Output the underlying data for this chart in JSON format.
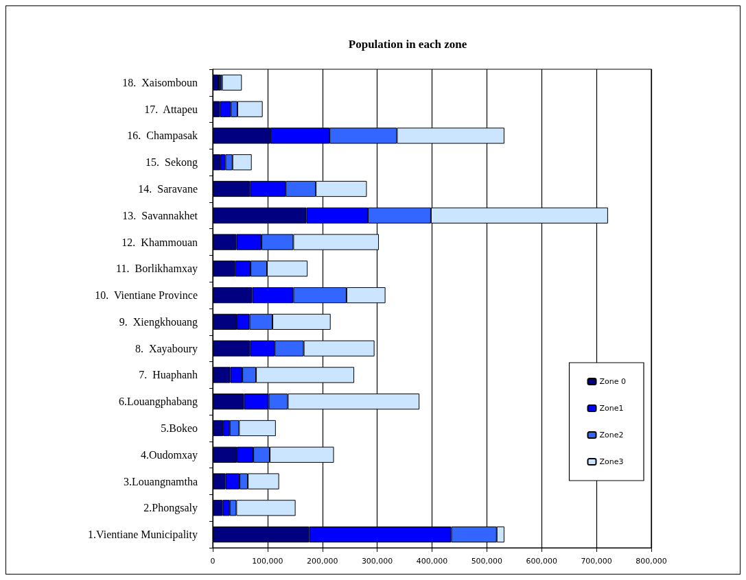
{
  "chart_data": {
    "type": "bar",
    "orientation": "horizontal",
    "stacked": true,
    "title": "Population in each zone",
    "categories": [
      "18.  Xaisomboun",
      "17.  Attapeu",
      "16.  Champasak",
      "15.  Sekong",
      "14.  Saravane",
      "13.  Savannakhet",
      "12.  Khammouan",
      "11.  Borlikhamxay",
      "10.  Vientiane Province",
      "9.  Xiengkhouang",
      "8.  Xayaboury",
      "7.  Huaphanh",
      "6.Louangphabang",
      "5.Bokeo",
      "4.Oudomxay",
      "3.Louangnamtha",
      "2.Phongsaly",
      "1.Vientiane Municipality"
    ],
    "series": [
      {
        "name": "Zone 0",
        "color": "#000080",
        "values": [
          10000,
          13000,
          105000,
          14000,
          68000,
          171000,
          43000,
          41000,
          72000,
          44000,
          68000,
          32000,
          57000,
          19000,
          44000,
          23000,
          18000,
          176000
        ]
      },
      {
        "name": "Zone1",
        "color": "#0000ff",
        "values": [
          4000,
          20000,
          108000,
          9000,
          65000,
          112000,
          46000,
          28000,
          75000,
          23000,
          45000,
          22000,
          45000,
          12000,
          30000,
          26000,
          13000,
          259000
        ]
      },
      {
        "name": "Zone2",
        "color": "#3366ff",
        "values": [
          3000,
          12000,
          123000,
          13000,
          55000,
          115000,
          58000,
          30000,
          97000,
          42000,
          53000,
          25000,
          35000,
          17000,
          30000,
          15000,
          12000,
          83000
        ]
      },
      {
        "name": "Zone3",
        "color": "#cce5ff",
        "values": [
          36000,
          46000,
          196000,
          35000,
          93000,
          323000,
          156000,
          74000,
          71000,
          106000,
          129000,
          179000,
          240000,
          67000,
          117000,
          57000,
          108000,
          14000
        ]
      }
    ],
    "xlim": [
      0,
      800000
    ],
    "xticks": [
      0,
      {
        "value": 100000,
        "label": "100,000"
      },
      {
        "value": 200000,
        "label": "200,000"
      },
      {
        "value": 300000,
        "label": "300,000"
      },
      {
        "value": 400000,
        "label": "400,000"
      },
      {
        "value": 500000,
        "label": "500,000"
      },
      {
        "value": 600000,
        "label": "600,000"
      },
      {
        "value": 700000,
        "label": "700,000"
      },
      {
        "value": 800000,
        "label": "800,000"
      }
    ],
    "grid": "x",
    "legend": "right"
  }
}
